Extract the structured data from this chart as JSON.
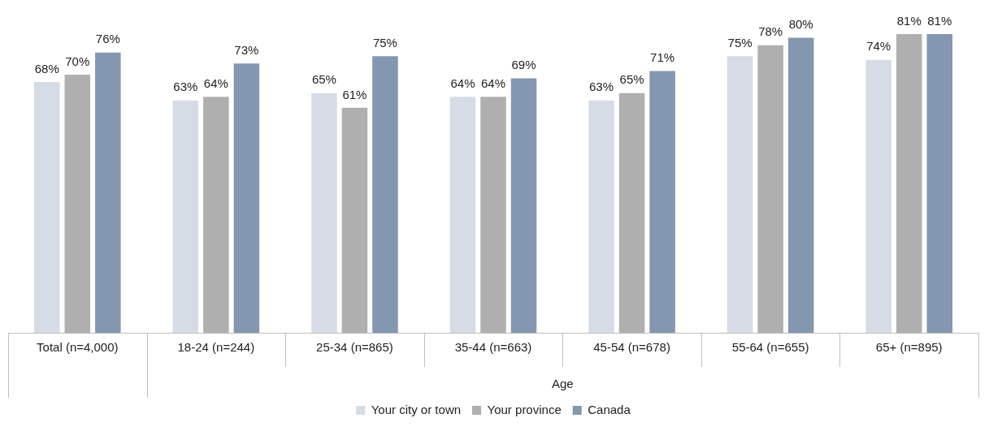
{
  "chart_data": {
    "type": "bar",
    "categories": [
      "Total (n=4,000)",
      "18-24 (n=244)",
      "25-34 (n=865)",
      "35-44 (n=663)",
      "45-54 (n=678)",
      "55-64 (n=655)",
      "65+ (n=895)"
    ],
    "series": [
      {
        "name": "Your city or town",
        "color": "#d6dce5",
        "values": [
          68,
          63,
          65,
          64,
          63,
          75,
          74
        ],
        "value_labels": [
          "68%",
          "63%",
          "65%",
          "64%",
          "63%",
          "75%",
          "74%"
        ]
      },
      {
        "name": "Your province",
        "color": "#afafaf",
        "values": [
          70,
          64,
          61,
          64,
          65,
          78,
          81
        ],
        "value_labels": [
          "70%",
          "64%",
          "61%",
          "64%",
          "65%",
          "78%",
          "81%"
        ]
      },
      {
        "name": "Canada",
        "color": "#8497b0",
        "values": [
          76,
          73,
          75,
          69,
          71,
          80,
          81
        ],
        "value_labels": [
          "76%",
          "73%",
          "75%",
          "69%",
          "71%",
          "80%",
          "81%"
        ]
      }
    ],
    "annotations": [
      "Age"
    ],
    "legend": "bottom",
    "grid": false
  }
}
